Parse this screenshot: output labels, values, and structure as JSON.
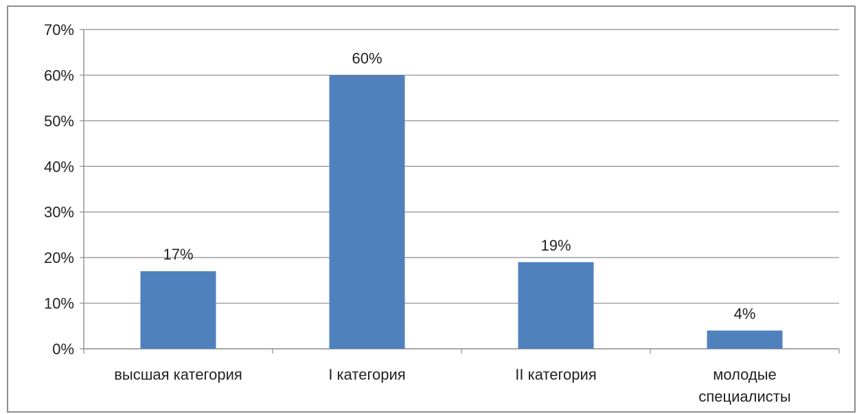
{
  "chart_data": {
    "type": "bar",
    "categories": [
      [
        "высшая категория"
      ],
      [
        "I категория"
      ],
      [
        "II категория"
      ],
      [
        "молодые",
        "специалисты"
      ]
    ],
    "values": [
      17,
      60,
      19,
      4
    ],
    "data_labels": [
      "17%",
      "60%",
      "19%",
      "4%"
    ],
    "y_tick_labels": [
      "0%",
      "10%",
      "20%",
      "30%",
      "40%",
      "50%",
      "60%",
      "70%"
    ],
    "ylim": [
      0,
      70
    ],
    "y_step": 10,
    "grid": true,
    "legend": "none",
    "colors": {
      "bar": "#4f81bd",
      "grid": "#8c8c8c",
      "axis": "#8c8c8c"
    }
  }
}
